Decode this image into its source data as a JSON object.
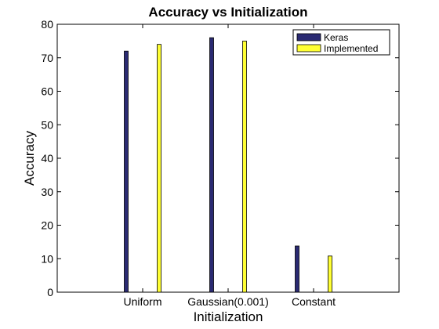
{
  "chart_data": {
    "type": "bar",
    "title": "Accuracy vs Initialization",
    "xlabel": "Initialization",
    "ylabel": "Accuracy",
    "categories": [
      "Uniform",
      "Gaussian(0.001)",
      "Constant"
    ],
    "series": [
      {
        "name": "Keras",
        "color": "#2a2a72",
        "values": [
          72,
          76,
          13.8
        ]
      },
      {
        "name": "Implemented",
        "color": "#ffff33",
        "values": [
          74,
          75,
          10.8
        ]
      }
    ],
    "ylim": [
      0,
      80
    ],
    "yticks": [
      "0",
      "10",
      "20",
      "30",
      "40",
      "50",
      "60",
      "70",
      "80"
    ],
    "grid": false,
    "legend_position": "top-right"
  }
}
